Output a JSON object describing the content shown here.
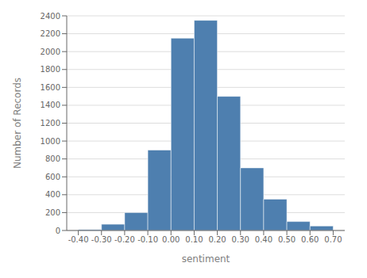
{
  "chart_data": {
    "type": "histogram",
    "xlabel": "sentiment",
    "ylabel": "Number of Records",
    "bins": [
      -0.4,
      -0.3,
      -0.2,
      -0.1,
      0.0,
      0.1,
      0.2,
      0.3,
      0.4,
      0.5,
      0.6,
      0.7
    ],
    "values": [
      10,
      70,
      200,
      900,
      2150,
      2350,
      1500,
      700,
      350,
      100,
      50
    ],
    "color": "#4e7faf",
    "xlim": [
      -0.45,
      0.75
    ],
    "ylim": [
      0,
      2400
    ],
    "xticks": [
      {
        "value": -0.4,
        "label": "-0.40"
      },
      {
        "value": -0.3,
        "label": "-0.30"
      },
      {
        "value": -0.2,
        "label": "-0.20"
      },
      {
        "value": -0.1,
        "label": "-0.10"
      },
      {
        "value": 0.0,
        "label": "0.00"
      },
      {
        "value": 0.1,
        "label": "0.10"
      },
      {
        "value": 0.2,
        "label": "0.20"
      },
      {
        "value": 0.3,
        "label": "0.30"
      },
      {
        "value": 0.4,
        "label": "0.40"
      },
      {
        "value": 0.5,
        "label": "0.50"
      },
      {
        "value": 0.6,
        "label": "0.60"
      },
      {
        "value": 0.7,
        "label": "0.70"
      }
    ],
    "yticks": [
      0,
      200,
      400,
      600,
      800,
      1000,
      1200,
      1400,
      1600,
      1800,
      2000,
      2200,
      2400
    ],
    "grid": true
  }
}
